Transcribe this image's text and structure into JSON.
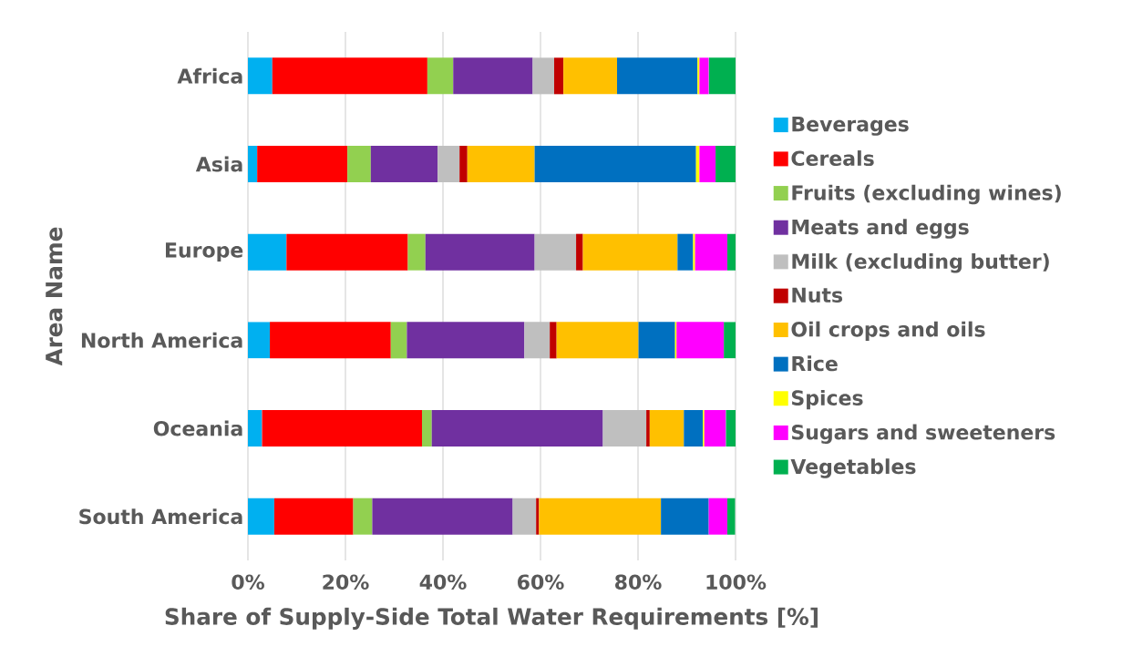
{
  "chart_data": {
    "type": "bar",
    "orientation": "horizontal",
    "stacked": true,
    "xlabel": "Share of Supply-Side Total Water Requirements [%]",
    "ylabel": "Area Name",
    "categories": [
      "Africa",
      "Asia",
      "Europe",
      "North America",
      "Oceania",
      "South America"
    ],
    "series": [
      {
        "name": "Beverages",
        "color": "#00b0f0",
        "values": [
          5.0,
          1.9,
          7.9,
          4.5,
          2.9,
          5.4
        ]
      },
      {
        "name": "Cereals",
        "color": "#ff0000",
        "values": [
          31.8,
          18.5,
          24.9,
          24.8,
          32.8,
          16.2
        ]
      },
      {
        "name": "Fruits (excluding wines)",
        "color": "#92d050",
        "values": [
          5.3,
          4.8,
          3.6,
          3.3,
          2.0,
          3.9
        ]
      },
      {
        "name": "Meats and eggs",
        "color": "#7030a0",
        "values": [
          16.3,
          13.7,
          22.4,
          24.1,
          35.1,
          28.8
        ]
      },
      {
        "name": "Milk (excluding butter)",
        "color": "#bfbfbf",
        "values": [
          4.4,
          4.5,
          8.5,
          5.2,
          8.9,
          4.8
        ]
      },
      {
        "name": "Nuts",
        "color": "#c00000",
        "values": [
          1.9,
          1.6,
          1.4,
          1.4,
          0.7,
          0.6
        ]
      },
      {
        "name": "Oil crops and oils",
        "color": "#ffc000",
        "values": [
          11.0,
          13.8,
          19.4,
          16.8,
          7.0,
          25.0
        ]
      },
      {
        "name": "Rice",
        "color": "#0070c0",
        "values": [
          16.5,
          33.1,
          3.2,
          7.5,
          3.9,
          9.8
        ]
      },
      {
        "name": "Spices",
        "color": "#ffff00",
        "values": [
          0.4,
          0.7,
          0.4,
          0.3,
          0.3,
          null
        ]
      },
      {
        "name": "Sugars and sweeteners",
        "color": "#ff00ff",
        "values": [
          1.9,
          3.3,
          6.6,
          9.7,
          4.4,
          3.8
        ]
      },
      {
        "name": "Vegetables",
        "color": "#00b050",
        "values": [
          5.5,
          4.1,
          1.7,
          2.4,
          2.0,
          1.6
        ]
      }
    ],
    "xlim": [
      0,
      100
    ],
    "xticks": [
      {
        "value": 0,
        "label": "0%"
      },
      {
        "value": 20,
        "label": "20%"
      },
      {
        "value": 40,
        "label": "40%"
      },
      {
        "value": 60,
        "label": "60%"
      },
      {
        "value": 80,
        "label": "80%"
      },
      {
        "value": 100,
        "label": "100%"
      }
    ],
    "grid": "x",
    "legend": "right"
  }
}
